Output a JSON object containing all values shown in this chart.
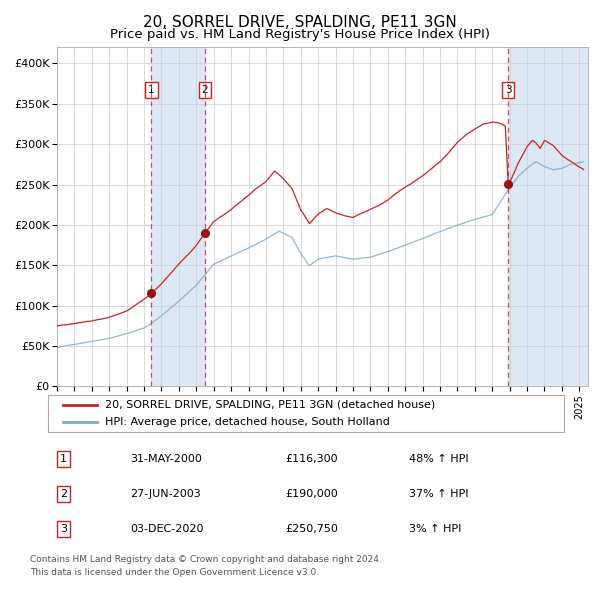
{
  "title": "20, SORREL DRIVE, SPALDING, PE11 3GN",
  "subtitle": "Price paid vs. HM Land Registry's House Price Index (HPI)",
  "xlim_start": 1995.0,
  "xlim_end": 2025.5,
  "ylim": [
    0,
    420000
  ],
  "yticks": [
    0,
    50000,
    100000,
    150000,
    200000,
    250000,
    300000,
    350000,
    400000
  ],
  "ytick_labels": [
    "£0",
    "£50K",
    "£100K",
    "£150K",
    "£200K",
    "£250K",
    "£300K",
    "£350K",
    "£400K"
  ],
  "transactions": [
    {
      "label": "1",
      "date_num": 2000.42,
      "price": 116300,
      "date_str": "31-MAY-2000",
      "pct": "48% ↑ HPI"
    },
    {
      "label": "2",
      "date_num": 2003.49,
      "price": 190000,
      "date_str": "27-JUN-2003",
      "pct": "37% ↑ HPI"
    },
    {
      "label": "3",
      "date_num": 2020.92,
      "price": 250750,
      "date_str": "03-DEC-2020",
      "pct": "3% ↑ HPI"
    }
  ],
  "legend_line1": "20, SORREL DRIVE, SPALDING, PE11 3GN (detached house)",
  "legend_line2": "HPI: Average price, detached house, South Holland",
  "footer1": "Contains HM Land Registry data © Crown copyright and database right 2024.",
  "footer2": "This data is licensed under the Open Government Licence v3.0.",
  "hpi_color": "#7faacc",
  "price_color": "#cc2222",
  "dot_color": "#991111",
  "vline_color": "#cc3333",
  "shade_color": "#dde8f5",
  "grid_color": "#cccccc",
  "bg_color": "#ffffff",
  "title_fontsize": 11,
  "subtitle_fontsize": 9.5,
  "tick_fontsize": 8,
  "legend_fontsize": 8,
  "table_fontsize": 8,
  "footer_fontsize": 6.5
}
